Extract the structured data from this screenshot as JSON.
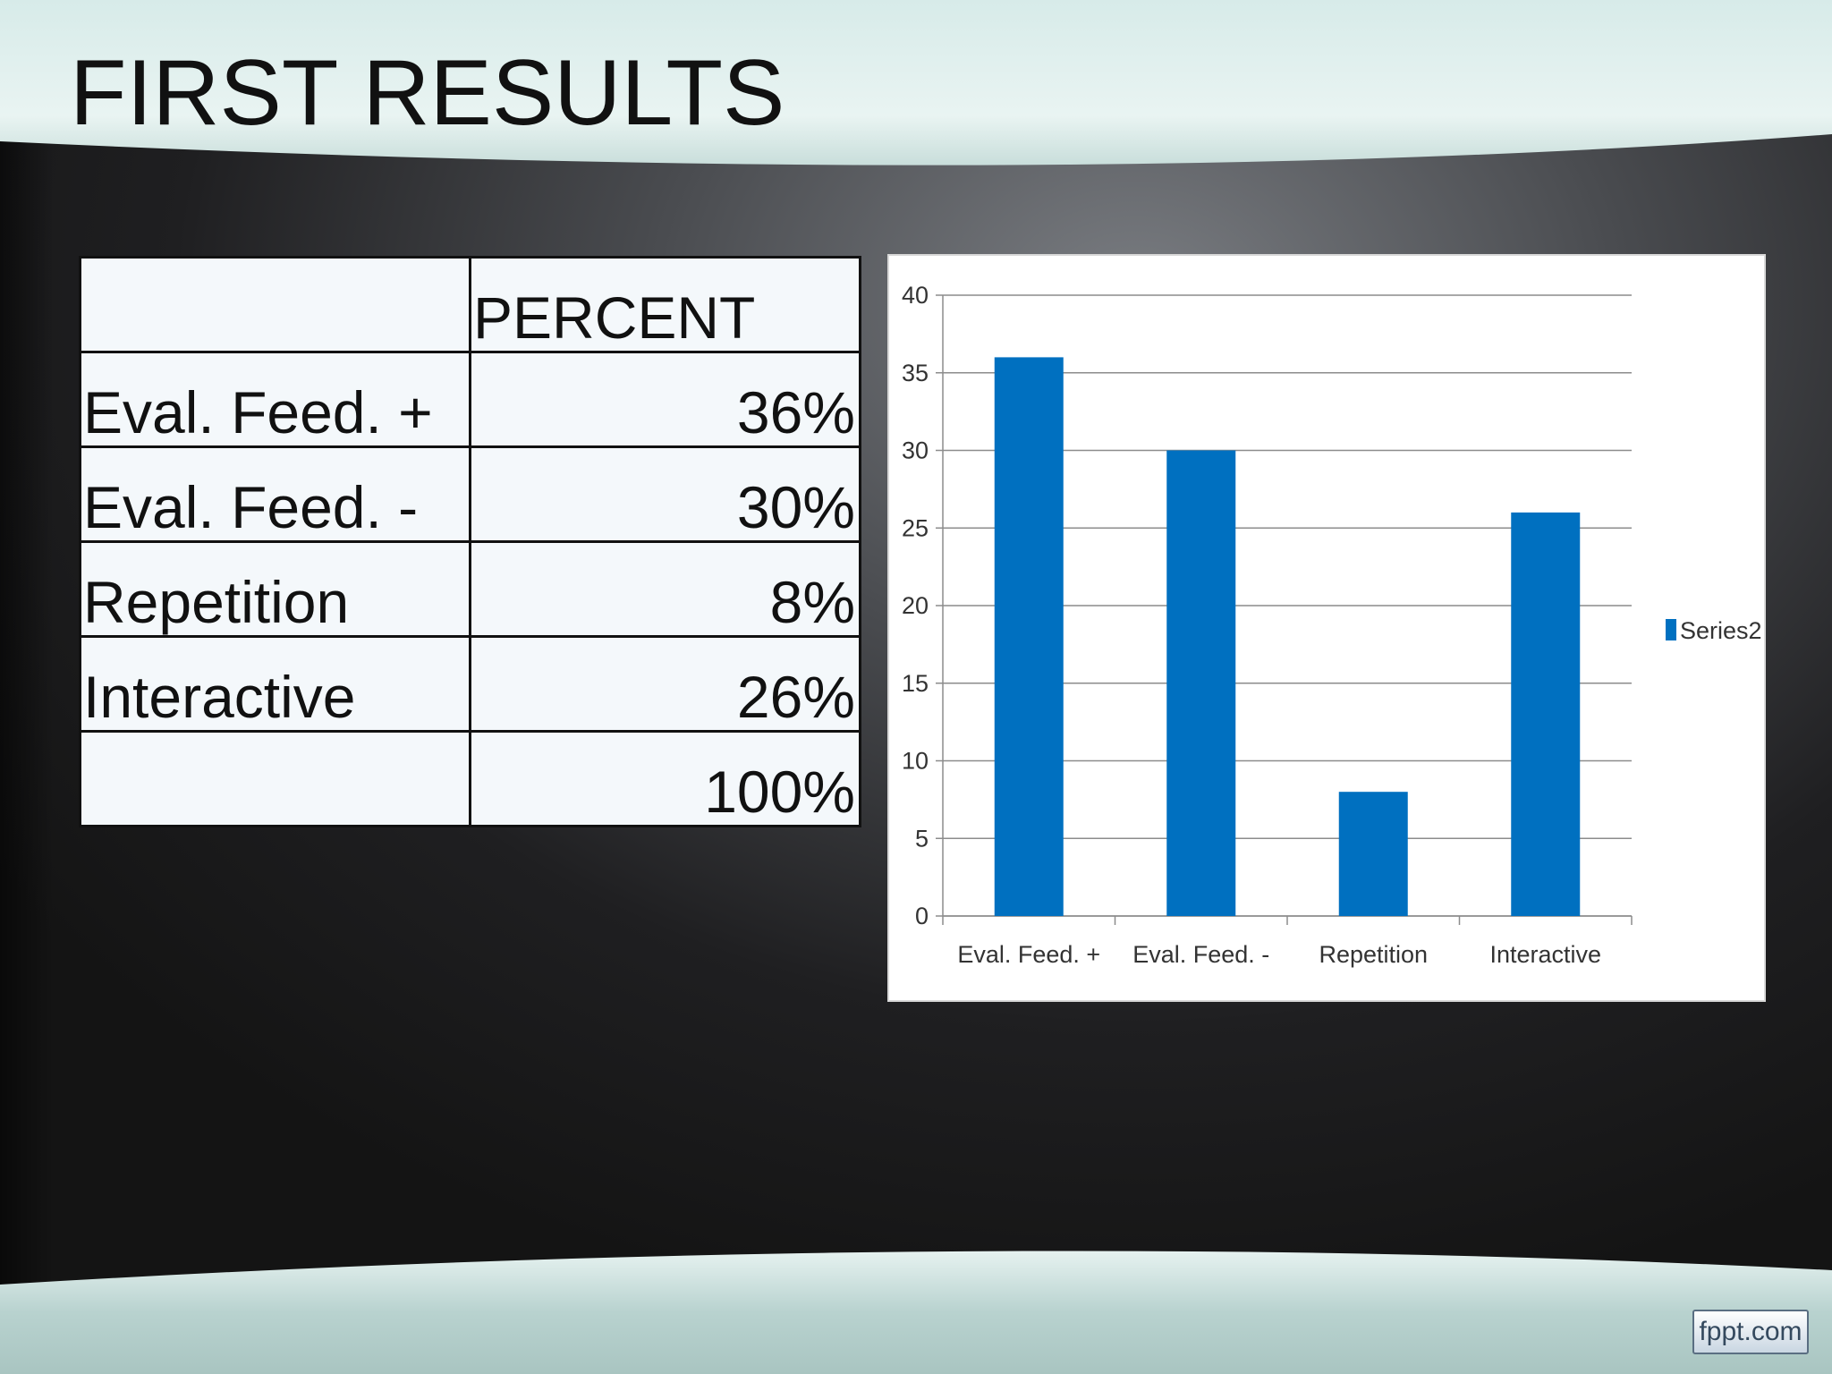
{
  "title": "FIRST RESULTS",
  "table": {
    "header": [
      "",
      "PERCENT"
    ],
    "rows": [
      {
        "label": "Eval. Feed. +",
        "value": "36%"
      },
      {
        "label": "Eval. Feed. -",
        "value": "30%"
      },
      {
        "label": "Repetition",
        "value": "8%"
      },
      {
        "label": "Interactive",
        "value": "26%"
      },
      {
        "label": "",
        "value": "100%"
      }
    ]
  },
  "chart_data": {
    "type": "bar",
    "categories": [
      "Eval. Feed. +",
      "Eval. Feed. -",
      "Repetition",
      "Interactive"
    ],
    "series": [
      {
        "name": "Series2",
        "values": [
          36,
          30,
          8,
          26
        ],
        "color": "#0070c0"
      }
    ],
    "ylim": [
      0,
      40
    ],
    "yticks": [
      0,
      5,
      10,
      15,
      20,
      25,
      30,
      35,
      40
    ],
    "grid": true,
    "legend": "right"
  },
  "colors": {
    "bar": "#0070c0",
    "grid": "#8c8c8c"
  },
  "watermark": "fppt.com"
}
